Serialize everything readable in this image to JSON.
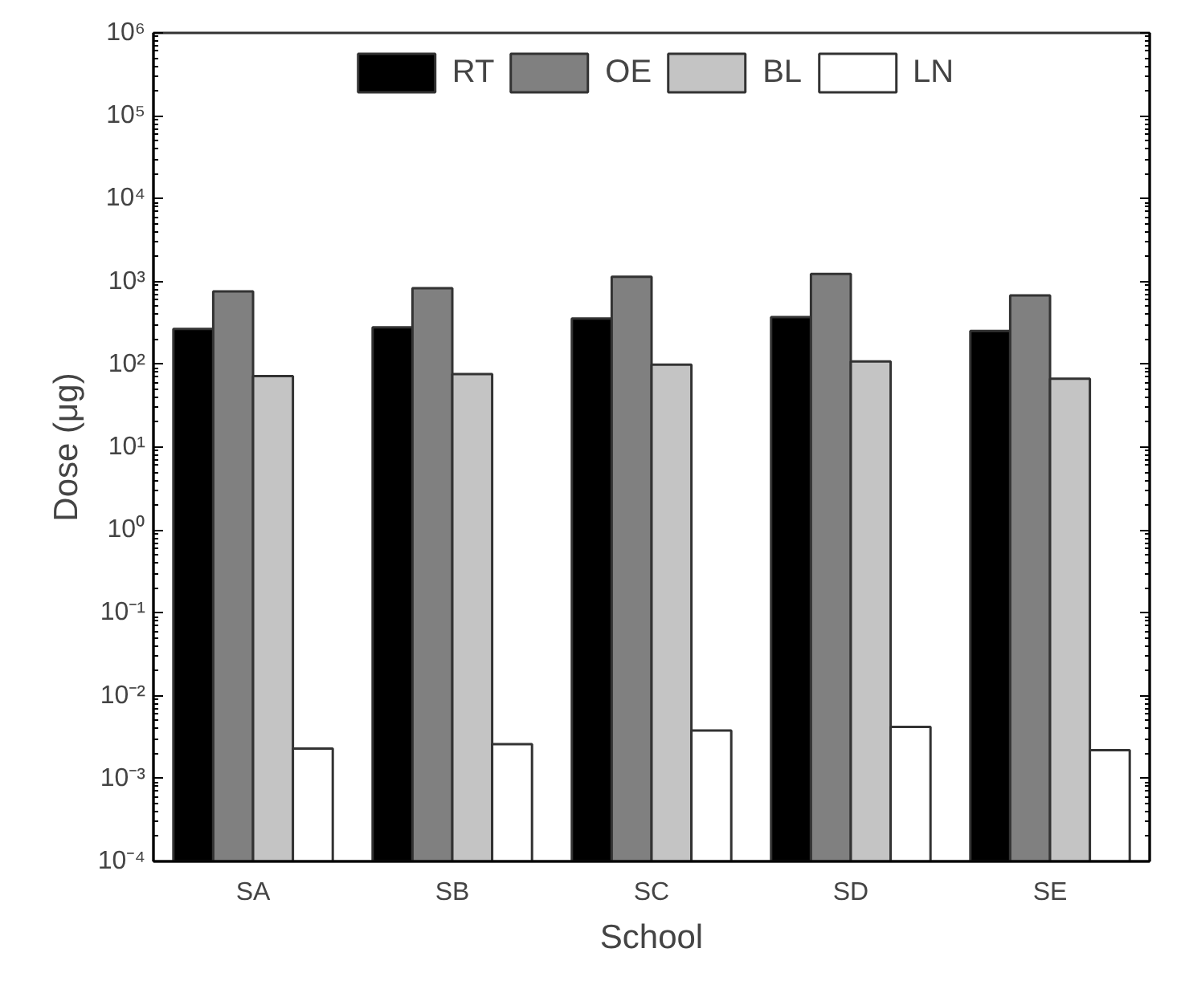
{
  "chart_data": {
    "type": "bar",
    "xlabel": "School",
    "ylabel": "Dose (μg)",
    "categories": [
      "SA",
      "SB",
      "SC",
      "SD",
      "SE"
    ],
    "series": [
      {
        "name": "RT",
        "color": "#000000",
        "values": [
          267,
          280,
          357,
          372,
          253
        ]
      },
      {
        "name": "OE",
        "color": "#808080",
        "values": [
          760,
          830,
          1140,
          1230,
          680
        ]
      },
      {
        "name": "BL",
        "color": "#c4c4c4",
        "values": [
          72,
          76,
          99,
          108,
          67
        ]
      },
      {
        "name": "LN",
        "color": "#ffffff",
        "values": [
          0.0023,
          0.0026,
          0.0038,
          0.0042,
          0.0022
        ]
      }
    ],
    "log": true,
    "ylim": [
      0.0001,
      1000000
    ],
    "yticks": [
      {
        "value": 0.0001,
        "label": "10⁻⁴"
      },
      {
        "value": 0.001,
        "label": "10⁻³"
      },
      {
        "value": 0.01,
        "label": "10⁻²"
      },
      {
        "value": 0.1,
        "label": "10⁻¹"
      },
      {
        "value": 1,
        "label": "10⁰"
      },
      {
        "value": 10,
        "label": "10¹"
      },
      {
        "value": 100,
        "label": "10²"
      },
      {
        "value": 1000,
        "label": "10³"
      },
      {
        "value": 10000,
        "label": "10⁴"
      },
      {
        "value": 100000,
        "label": "10⁵"
      },
      {
        "value": 1000000,
        "label": "10⁶"
      }
    ],
    "grid": false,
    "legend": "top"
  }
}
